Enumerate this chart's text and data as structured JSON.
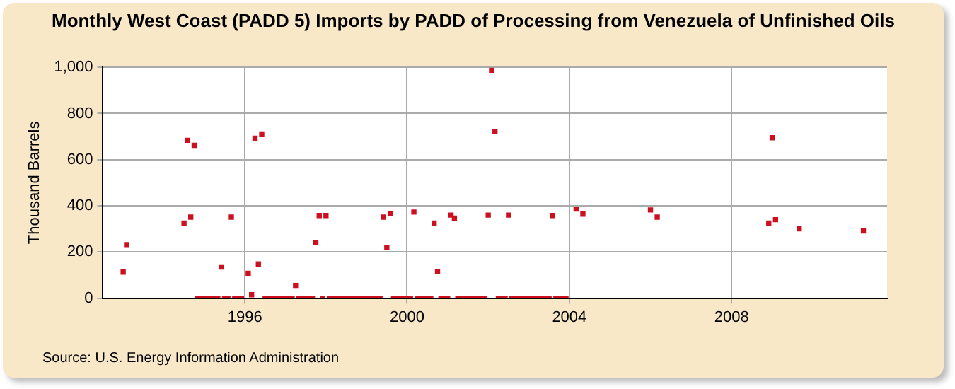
{
  "chart_data": {
    "type": "scatter",
    "title": "Monthly West Coast (PADD 5) Imports by PADD of Processing from Venezuela of Unfinished Oils",
    "ylabel": "Thousand Barrels",
    "annotations": [
      "Source: U.S. Energy Information Administration"
    ],
    "marker": "square",
    "grid": true,
    "xlim": [
      "1992-07",
      "2011-11"
    ],
    "xticks": [
      "1996",
      "2000",
      "2004",
      "2008"
    ],
    "ylim": [
      0,
      1000
    ],
    "yticks": [
      0,
      200,
      400,
      600,
      800,
      {
        "value": 1000,
        "label": "1,000"
      }
    ],
    "series": [
      {
        "color": "#cc1020",
        "x": [
          "1993-01",
          "1993-02",
          "1994-07",
          "1994-08",
          "1994-09",
          "1994-10",
          "1994-11",
          "1994-12",
          "1995-01",
          "1995-02",
          "1995-03",
          "1995-04",
          "1995-05",
          "1995-06",
          "1995-07",
          "1995-08",
          "1995-09",
          "1995-10",
          "1995-11",
          "1995-12",
          "1996-02",
          "1996-03",
          "1996-04",
          "1996-05",
          "1996-06",
          "1996-07",
          "1996-08",
          "1996-09",
          "1996-10",
          "1996-11",
          "1996-12",
          "1997-01",
          "1997-02",
          "1997-03",
          "1997-04",
          "1997-05",
          "1997-06",
          "1997-07",
          "1997-08",
          "1997-09",
          "1997-10",
          "1997-11",
          "1997-12",
          "1998-01",
          "1998-02",
          "1998-03",
          "1998-04",
          "1998-05",
          "1998-06",
          "1998-07",
          "1998-08",
          "1998-09",
          "1998-10",
          "1998-11",
          "1998-12",
          "1999-01",
          "1999-02",
          "1999-03",
          "1999-04",
          "1999-05",
          "1999-06",
          "1999-07",
          "1999-08",
          "1999-09",
          "1999-10",
          "1999-11",
          "1999-12",
          "2000-01",
          "2000-02",
          "2000-03",
          "2000-04",
          "2000-05",
          "2000-06",
          "2000-07",
          "2000-08",
          "2000-09",
          "2000-10",
          "2000-11",
          "2000-12",
          "2001-01",
          "2001-02",
          "2001-03",
          "2001-04",
          "2001-05",
          "2001-06",
          "2001-07",
          "2001-08",
          "2001-09",
          "2001-10",
          "2001-11",
          "2001-12",
          "2002-01",
          "2002-02",
          "2002-03",
          "2002-04",
          "2002-05",
          "2002-06",
          "2002-07",
          "2002-08",
          "2002-09",
          "2002-10",
          "2002-11",
          "2002-12",
          "2003-01",
          "2003-02",
          "2003-03",
          "2003-04",
          "2003-05",
          "2003-06",
          "2003-07",
          "2003-08",
          "2003-09",
          "2003-10",
          "2003-11",
          "2003-12",
          "2004-03",
          "2004-05",
          "2006-01",
          "2006-03",
          "2008-12",
          "2009-01",
          "2009-02",
          "2009-09",
          "2011-04"
        ],
        "values": [
          113,
          232,
          325,
          684,
          351,
          662,
          0,
          0,
          0,
          0,
          0,
          0,
          0,
          135,
          0,
          0,
          351,
          0,
          0,
          0,
          108,
          15,
          693,
          148,
          711,
          0,
          0,
          0,
          0,
          0,
          0,
          0,
          0,
          0,
          55,
          0,
          0,
          0,
          0,
          0,
          240,
          358,
          0,
          358,
          0,
          0,
          0,
          0,
          0,
          0,
          0,
          0,
          0,
          0,
          0,
          0,
          0,
          0,
          0,
          0,
          351,
          218,
          366,
          0,
          0,
          0,
          0,
          0,
          0,
          373,
          0,
          0,
          0,
          0,
          0,
          325,
          115,
          0,
          0,
          0,
          360,
          347,
          0,
          0,
          0,
          0,
          0,
          0,
          0,
          0,
          0,
          360,
          987,
          722,
          0,
          0,
          0,
          360,
          0,
          0,
          0,
          0,
          0,
          0,
          0,
          0,
          0,
          0,
          0,
          0,
          358,
          0,
          0,
          0,
          0,
          386,
          364,
          382,
          351,
          325,
          695,
          340,
          300,
          291
        ]
      }
    ]
  }
}
